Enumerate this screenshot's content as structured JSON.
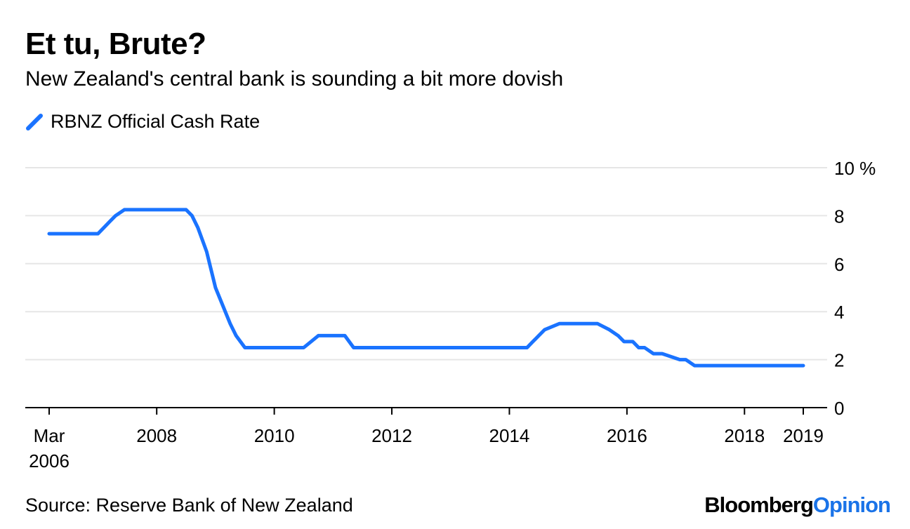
{
  "header": {
    "title": "Et tu, Brute?",
    "subtitle": "New Zealand's central bank is sounding a bit more dovish"
  },
  "footer": {
    "source": "Source: Reserve Bank of New Zealand",
    "brand_main": "Bloomberg",
    "brand_accent": "Opinion"
  },
  "colors": {
    "series": "#1a73ff",
    "grid": "#e6e6e6",
    "axis": "#000000",
    "brand_accent": "#1a73e8"
  },
  "chart_data": {
    "type": "line",
    "title": "Et tu, Brute?",
    "subtitle": "New Zealand's central bank is sounding a bit more dovish",
    "xlabel": "",
    "ylabel": "",
    "ylim": [
      0,
      10
    ],
    "xlim": [
      2006.17,
      2019.0
    ],
    "grid": true,
    "legend_position": "top-left",
    "y_ticks": [
      {
        "value": 0,
        "label": "0"
      },
      {
        "value": 2,
        "label": "2"
      },
      {
        "value": 4,
        "label": "4"
      },
      {
        "value": 6,
        "label": "6"
      },
      {
        "value": 8,
        "label": "8"
      },
      {
        "value": 10,
        "label": "10 %"
      }
    ],
    "x_ticks": [
      {
        "value": 2006.17,
        "label": "Mar",
        "label2": "2006"
      },
      {
        "value": 2008.0,
        "label": "2008"
      },
      {
        "value": 2010.0,
        "label": "2010"
      },
      {
        "value": 2012.0,
        "label": "2012"
      },
      {
        "value": 2014.0,
        "label": "2014"
      },
      {
        "value": 2016.0,
        "label": "2016"
      },
      {
        "value": 2018.0,
        "label": "2018"
      },
      {
        "value": 2019.0,
        "label": "2019"
      }
    ],
    "series": [
      {
        "name": "RBNZ Official Cash Rate",
        "color": "#1a73ff",
        "x": [
          2006.17,
          2007.0,
          2007.1,
          2007.2,
          2007.3,
          2007.45,
          2007.6,
          2008.5,
          2008.6,
          2008.7,
          2008.85,
          2009.0,
          2009.25,
          2009.35,
          2009.5,
          2010.5,
          2010.75,
          2011.2,
          2011.35,
          2014.3,
          2014.4,
          2014.5,
          2014.6,
          2014.85,
          2015.5,
          2015.7,
          2015.85,
          2015.95,
          2016.1,
          2016.2,
          2016.3,
          2016.45,
          2016.6,
          2016.9,
          2017.0,
          2017.15,
          2017.25,
          2019.0
        ],
        "y": [
          7.25,
          7.25,
          7.5,
          7.75,
          8.0,
          8.25,
          8.25,
          8.25,
          8.0,
          7.5,
          6.5,
          5.0,
          3.5,
          3.0,
          2.5,
          2.5,
          3.0,
          3.0,
          2.5,
          2.5,
          2.75,
          3.0,
          3.25,
          3.5,
          3.5,
          3.25,
          3.0,
          2.75,
          2.75,
          2.5,
          2.5,
          2.25,
          2.25,
          2.0,
          2.0,
          1.75,
          1.75,
          1.75
        ]
      }
    ]
  }
}
